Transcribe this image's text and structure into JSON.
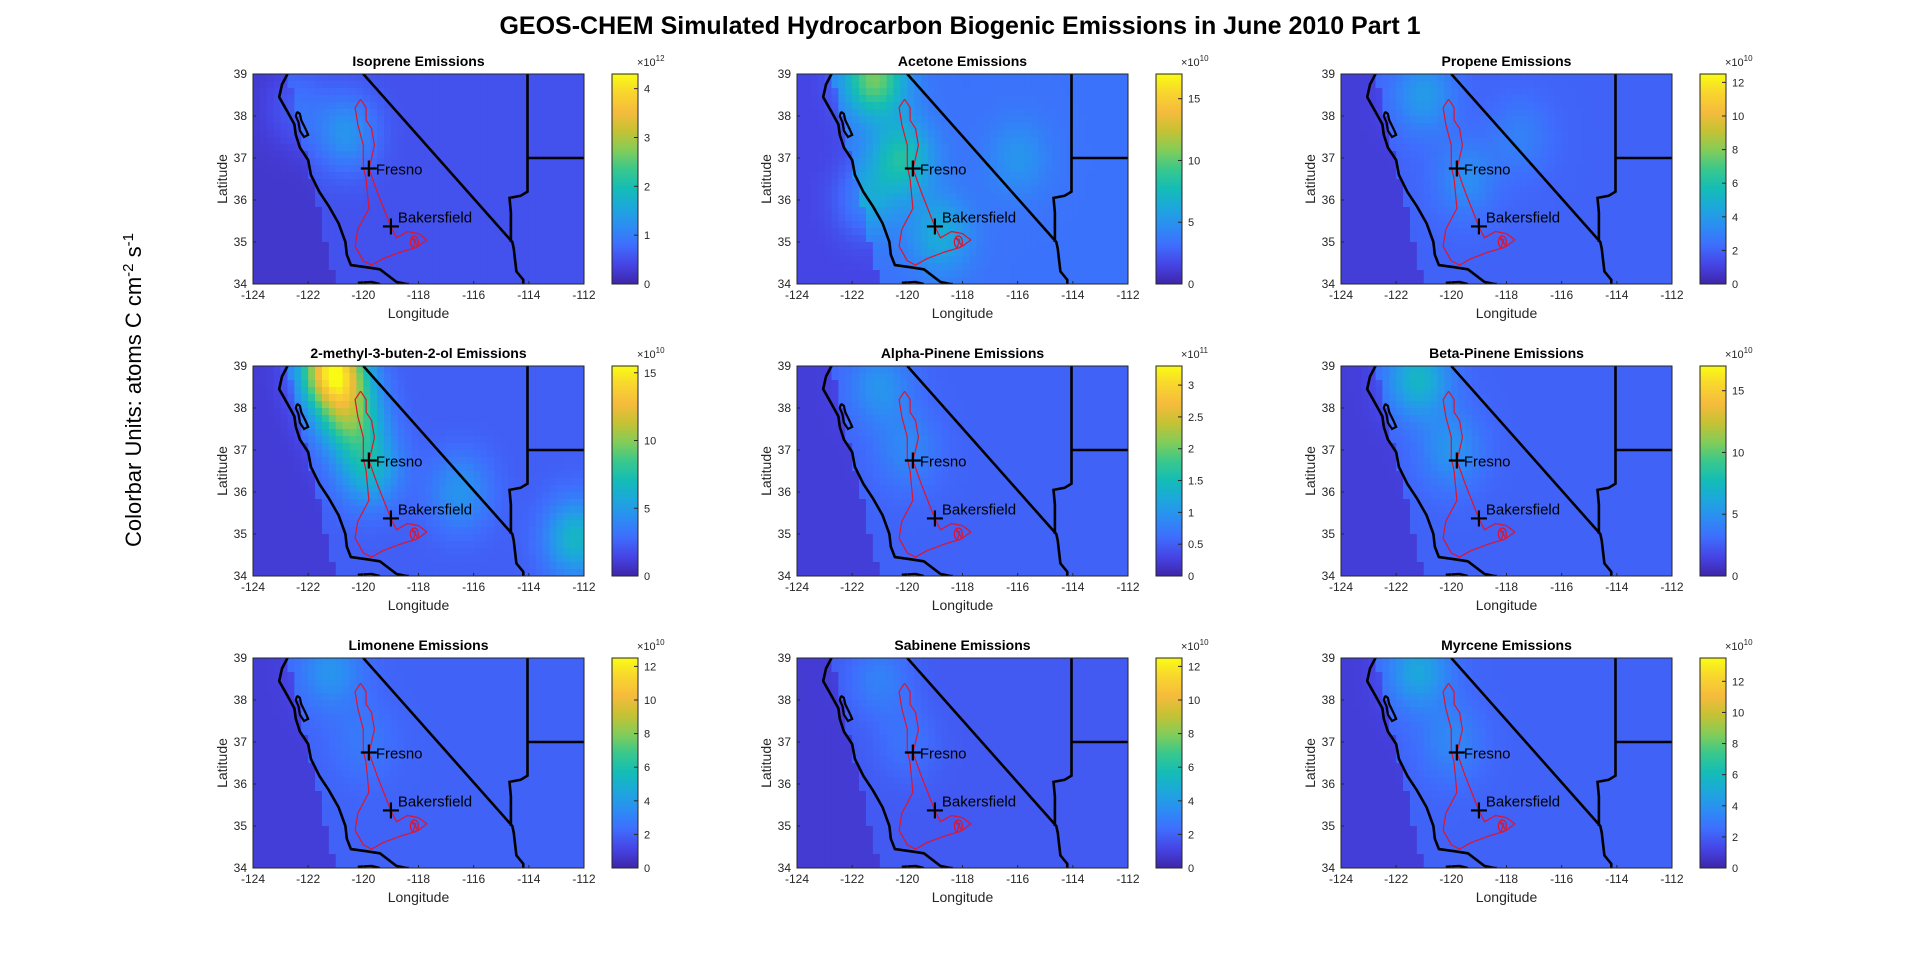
{
  "figure": {
    "title": "GEOS-CHEM Simulated Hydrocarbon Biogenic Emissions in June 2010 Part 1",
    "side_label_main": "Colorbar Units: atoms C cm",
    "side_label_exp1": "-2",
    "side_label_mid": " s",
    "side_label_exp2": "-1"
  },
  "colors": {
    "colormap": [
      "#3e26a8",
      "#4544e5",
      "#3f6cfd",
      "#2d8cf4",
      "#1ca8dc",
      "#14bcb6",
      "#38c88d",
      "#82cc59",
      "#c5c234",
      "#f5bb3c",
      "#f8d52e",
      "#f9fb15"
    ],
    "background_blue": "#3c41d6",
    "boundary": "#000000",
    "flight_track": "#e0142c",
    "marker": "#000000"
  },
  "chart_data": [
    {
      "type": "heatmap",
      "title": "Isoprene Emissions",
      "xlabel": "Longitude",
      "ylabel": "Latitude",
      "xlim": [
        -124,
        -112
      ],
      "ylim": [
        34,
        39
      ],
      "xticks": [
        "-124",
        "-122",
        "-120",
        "-118",
        "-116",
        "-114",
        "-112"
      ],
      "yticks": [
        "34",
        "35",
        "36",
        "37",
        "38",
        "39"
      ],
      "colorbar": {
        "range": [
          0,
          4.3
        ],
        "ticks": [
          "0",
          "1",
          "2",
          "3",
          "4"
        ],
        "exponent_base": "×10",
        "exponent": "12"
      },
      "level_min": 0.12,
      "hotspots": [
        {
          "lon": -120.6,
          "lat": 37.6,
          "value": 0.3
        },
        {
          "lon": -122.5,
          "lat": 38.2,
          "value": 0.2
        }
      ],
      "cities": [
        {
          "name": "Fresno",
          "lon": -119.8,
          "lat": 36.75
        },
        {
          "name": "Bakersfield",
          "lon": -119.0,
          "lat": 35.37
        }
      ]
    },
    {
      "type": "heatmap",
      "title": "Acetone Emissions",
      "xlabel": "Longitude",
      "ylabel": "Latitude",
      "xlim": [
        -124,
        -112
      ],
      "ylim": [
        34,
        39
      ],
      "xticks": [
        "-124",
        "-122",
        "-120",
        "-118",
        "-116",
        "-114",
        "-112"
      ],
      "yticks": [
        "34",
        "35",
        "36",
        "37",
        "38",
        "39"
      ],
      "colorbar": {
        "range": [
          0,
          17
        ],
        "ticks": [
          "0",
          "5",
          "10",
          "15"
        ],
        "exponent_base": "×10",
        "exponent": "10"
      },
      "level_min": 0.2,
      "hotspots": [
        {
          "lon": -121.2,
          "lat": 38.9,
          "value": 0.62
        },
        {
          "lon": -120.2,
          "lat": 37.0,
          "value": 0.48
        },
        {
          "lon": -118.8,
          "lat": 35.2,
          "value": 0.38
        },
        {
          "lon": -121.5,
          "lat": 36.0,
          "value": 0.35
        },
        {
          "lon": -116.0,
          "lat": 37.0,
          "value": 0.3
        }
      ],
      "cities": [
        {
          "name": "Fresno",
          "lon": -119.8,
          "lat": 36.75
        },
        {
          "name": "Bakersfield",
          "lon": -119.0,
          "lat": 35.37
        }
      ]
    },
    {
      "type": "heatmap",
      "title": "Propene Emissions",
      "xlabel": "Longitude",
      "ylabel": "Latitude",
      "xlim": [
        -124,
        -112
      ],
      "ylim": [
        34,
        39
      ],
      "xticks": [
        "-124",
        "-122",
        "-120",
        "-118",
        "-116",
        "-114",
        "-112"
      ],
      "yticks": [
        "34",
        "35",
        "36",
        "37",
        "38",
        "39"
      ],
      "colorbar": {
        "range": [
          0,
          12.5
        ],
        "ticks": [
          "0",
          "2",
          "4",
          "6",
          "8",
          "10",
          "12"
        ],
        "exponent_base": "×10",
        "exponent": "10"
      },
      "level_min": 0.16,
      "hotspots": [
        {
          "lon": -121.0,
          "lat": 38.5,
          "value": 0.32
        },
        {
          "lon": -119.5,
          "lat": 36.5,
          "value": 0.28
        },
        {
          "lon": -117.5,
          "lat": 37.5,
          "value": 0.24
        }
      ],
      "cities": [
        {
          "name": "Fresno",
          "lon": -119.8,
          "lat": 36.75
        },
        {
          "name": "Bakersfield",
          "lon": -119.0,
          "lat": 35.37
        }
      ]
    },
    {
      "type": "heatmap",
      "title": "2-methyl-3-buten-2-ol Emissions",
      "xlabel": "Longitude",
      "ylabel": "Latitude",
      "xlim": [
        -124,
        -112
      ],
      "ylim": [
        34,
        39
      ],
      "xticks": [
        "-124",
        "-122",
        "-120",
        "-118",
        "-116",
        "-114",
        "-112"
      ],
      "yticks": [
        "34",
        "35",
        "36",
        "37",
        "38",
        "39"
      ],
      "colorbar": {
        "range": [
          0,
          15.5
        ],
        "ticks": [
          "0",
          "5",
          "10",
          "15"
        ],
        "exponent_base": "×10",
        "exponent": "10"
      },
      "level_min": 0.15,
      "hotspots": [
        {
          "lon": -121.1,
          "lat": 38.9,
          "value": 0.95
        },
        {
          "lon": -120.5,
          "lat": 37.8,
          "value": 0.55
        },
        {
          "lon": -119.8,
          "lat": 36.6,
          "value": 0.42
        },
        {
          "lon": -112.3,
          "lat": 34.9,
          "value": 0.42
        },
        {
          "lon": -116.5,
          "lat": 36.0,
          "value": 0.3
        }
      ],
      "cities": [
        {
          "name": "Fresno",
          "lon": -119.8,
          "lat": 36.75
        },
        {
          "name": "Bakersfield",
          "lon": -119.0,
          "lat": 35.37
        }
      ]
    },
    {
      "type": "heatmap",
      "title": "Alpha-Pinene Emissions",
      "xlabel": "Longitude",
      "ylabel": "Latitude",
      "xlim": [
        -124,
        -112
      ],
      "ylim": [
        34,
        39
      ],
      "xticks": [
        "-124",
        "-122",
        "-120",
        "-118",
        "-116",
        "-114",
        "-112"
      ],
      "yticks": [
        "34",
        "35",
        "36",
        "37",
        "38",
        "39"
      ],
      "colorbar": {
        "range": [
          0,
          3.3
        ],
        "ticks": [
          "0",
          "0.5",
          "1",
          "1.5",
          "2",
          "2.5",
          "3"
        ],
        "exponent_base": "×10",
        "exponent": "11"
      },
      "level_min": 0.16,
      "hotspots": [
        {
          "lon": -121.0,
          "lat": 38.5,
          "value": 0.3
        },
        {
          "lon": -120.0,
          "lat": 37.0,
          "value": 0.26
        }
      ],
      "cities": [
        {
          "name": "Fresno",
          "lon": -119.8,
          "lat": 36.75
        },
        {
          "name": "Bakersfield",
          "lon": -119.0,
          "lat": 35.37
        }
      ]
    },
    {
      "type": "heatmap",
      "title": "Beta-Pinene Emissions",
      "xlabel": "Longitude",
      "ylabel": "Latitude",
      "xlim": [
        -124,
        -112
      ],
      "ylim": [
        34,
        39
      ],
      "xticks": [
        "-124",
        "-122",
        "-120",
        "-118",
        "-116",
        "-114",
        "-112"
      ],
      "yticks": [
        "34",
        "35",
        "36",
        "37",
        "38",
        "39"
      ],
      "colorbar": {
        "range": [
          0,
          17
        ],
        "ticks": [
          "0",
          "5",
          "10",
          "15"
        ],
        "exponent_base": "×10",
        "exponent": "10"
      },
      "level_min": 0.16,
      "hotspots": [
        {
          "lon": -121.2,
          "lat": 38.7,
          "value": 0.42
        },
        {
          "lon": -120.0,
          "lat": 37.0,
          "value": 0.3
        }
      ],
      "cities": [
        {
          "name": "Fresno",
          "lon": -119.8,
          "lat": 36.75
        },
        {
          "name": "Bakersfield",
          "lon": -119.0,
          "lat": 35.37
        }
      ]
    },
    {
      "type": "heatmap",
      "title": "Limonene Emissions",
      "xlabel": "Longitude",
      "ylabel": "Latitude",
      "xlim": [
        -124,
        -112
      ],
      "ylim": [
        34,
        39
      ],
      "xticks": [
        "-124",
        "-122",
        "-120",
        "-118",
        "-116",
        "-114",
        "-112"
      ],
      "yticks": [
        "34",
        "35",
        "36",
        "37",
        "38",
        "39"
      ],
      "colorbar": {
        "range": [
          0,
          12.5
        ],
        "ticks": [
          "0",
          "2",
          "4",
          "6",
          "8",
          "10",
          "12"
        ],
        "exponent_base": "×10",
        "exponent": "10"
      },
      "level_min": 0.16,
      "hotspots": [
        {
          "lon": -121.2,
          "lat": 38.7,
          "value": 0.3
        },
        {
          "lon": -120.0,
          "lat": 37.0,
          "value": 0.22
        }
      ],
      "cities": [
        {
          "name": "Fresno",
          "lon": -119.8,
          "lat": 36.75
        },
        {
          "name": "Bakersfield",
          "lon": -119.0,
          "lat": 35.37
        }
      ]
    },
    {
      "type": "heatmap",
      "title": "Sabinene Emissions",
      "xlabel": "Longitude",
      "ylabel": "Latitude",
      "xlim": [
        -124,
        -112
      ],
      "ylim": [
        34,
        39
      ],
      "xticks": [
        "-124",
        "-122",
        "-120",
        "-118",
        "-116",
        "-114",
        "-112"
      ],
      "yticks": [
        "34",
        "35",
        "36",
        "37",
        "38",
        "39"
      ],
      "colorbar": {
        "range": [
          0,
          12.5
        ],
        "ticks": [
          "0",
          "2",
          "4",
          "6",
          "8",
          "10",
          "12"
        ],
        "exponent_base": "×10",
        "exponent": "10"
      },
      "level_min": 0.14,
      "hotspots": [
        {
          "lon": -121.0,
          "lat": 38.5,
          "value": 0.24
        },
        {
          "lon": -120.0,
          "lat": 37.0,
          "value": 0.2
        }
      ],
      "cities": [
        {
          "name": "Fresno",
          "lon": -119.8,
          "lat": 36.75
        },
        {
          "name": "Bakersfield",
          "lon": -119.0,
          "lat": 35.37
        }
      ]
    },
    {
      "type": "heatmap",
      "title": "Myrcene Emissions",
      "xlabel": "Longitude",
      "ylabel": "Latitude",
      "xlim": [
        -124,
        -112
      ],
      "ylim": [
        34,
        39
      ],
      "xticks": [
        "-124",
        "-122",
        "-120",
        "-118",
        "-116",
        "-114",
        "-112"
      ],
      "yticks": [
        "34",
        "35",
        "36",
        "37",
        "38",
        "39"
      ],
      "colorbar": {
        "range": [
          0,
          13.5
        ],
        "ticks": [
          "0",
          "2",
          "4",
          "6",
          "8",
          "10",
          "12"
        ],
        "exponent_base": "×10",
        "exponent": "10"
      },
      "level_min": 0.16,
      "hotspots": [
        {
          "lon": -121.2,
          "lat": 38.7,
          "value": 0.36
        },
        {
          "lon": -120.0,
          "lat": 37.0,
          "value": 0.26
        }
      ],
      "cities": [
        {
          "name": "Fresno",
          "lon": -119.8,
          "lat": 36.75
        },
        {
          "name": "Bakersfield",
          "lon": -119.0,
          "lat": 35.37
        }
      ]
    }
  ]
}
